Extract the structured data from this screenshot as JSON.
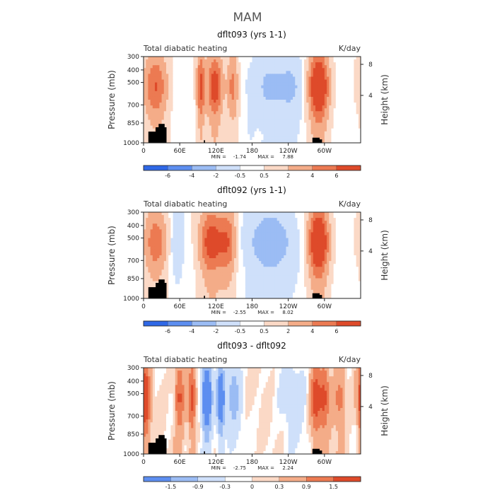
{
  "figure_title": "MAM",
  "chart_data": [
    {
      "type": "heatmap",
      "title": "dflt093 (yrs 1-1)",
      "subtitle_left": "Total diabatic heating",
      "subtitle_right": "K/day",
      "ylabel": "Pressure (mb)",
      "ylabel_right": "Height (km)",
      "x_ticks": [
        "0",
        "60E",
        "120E",
        "180",
        "120W",
        "60W"
      ],
      "y_ticks": [
        "300",
        "400",
        "500",
        "700",
        "850",
        "1000"
      ],
      "right_ticks": [
        "8",
        "4"
      ],
      "stats": {
        "min_label": "MIN =",
        "min": "-1.74",
        "max_label": "MAX =",
        "max": "7.88"
      },
      "colorbar_ticks": [
        "-6",
        "-4",
        "-2",
        "-0.5",
        "0.5",
        "2",
        "4",
        "6"
      ],
      "levels": [
        -6,
        -4,
        -2,
        -0.5,
        0.5,
        2,
        4,
        6
      ],
      "features": [
        {
          "lon": 20,
          "amp": 4.5,
          "width": 14
        },
        {
          "lon": 95,
          "amp": 5.0,
          "width": 5
        },
        {
          "lon": 118,
          "amp": 5.5,
          "width": 9
        },
        {
          "lon": 148,
          "amp": 3.5,
          "width": 7
        },
        {
          "lon": 210,
          "amp": -1.7,
          "width": 25
        },
        {
          "lon": 290,
          "amp": 7.5,
          "width": 12
        },
        {
          "lon": 250,
          "amp": -1.2,
          "width": 15
        }
      ]
    },
    {
      "type": "heatmap",
      "title": "dflt092 (yrs 1-1)",
      "subtitle_left": "Total diabatic heating",
      "subtitle_right": "K/day",
      "ylabel": "Pressure (mb)",
      "ylabel_right": "Height (km)",
      "x_ticks": [
        "0",
        "60E",
        "120E",
        "180",
        "120W",
        "60W"
      ],
      "y_ticks": [
        "300",
        "400",
        "500",
        "700",
        "850",
        "1000"
      ],
      "right_ticks": [
        "8",
        "4"
      ],
      "stats": {
        "min_label": "MIN =",
        "min": "-2.55",
        "max_label": "MAX =",
        "max": "8.02"
      },
      "colorbar_ticks": [
        "-6",
        "-4",
        "-2",
        "-0.5",
        "0.5",
        "2",
        "4",
        "6"
      ],
      "levels": [
        -6,
        -4,
        -2,
        -0.5,
        0.5,
        2,
        4,
        6
      ],
      "features": [
        {
          "lon": 20,
          "amp": 4.0,
          "width": 14
        },
        {
          "lon": 112,
          "amp": 5.5,
          "width": 14
        },
        {
          "lon": 140,
          "amp": 4.0,
          "width": 10
        },
        {
          "lon": 55,
          "amp": -1.5,
          "width": 8
        },
        {
          "lon": 210,
          "amp": -2.5,
          "width": 28
        },
        {
          "lon": 290,
          "amp": 7.5,
          "width": 12
        }
      ]
    },
    {
      "type": "heatmap",
      "title": "dflt093 - dflt092",
      "subtitle_left": "Total diabatic heating",
      "subtitle_right": "K/day",
      "ylabel": "Pressure (mb)",
      "ylabel_right": "Height (km)",
      "x_ticks": [
        "0",
        "60E",
        "120E",
        "180",
        "120W",
        "60W"
      ],
      "y_ticks": [
        "300",
        "400",
        "500",
        "700",
        "850",
        "1000"
      ],
      "right_ticks": [
        "8",
        "4"
      ],
      "stats": {
        "min_label": "MIN =",
        "min": "-2.75",
        "max_label": "MAX =",
        "max": "2.24"
      },
      "colorbar_ticks": [
        "-1.5",
        "-0.9",
        "-0.3",
        "0",
        "0.3",
        "0.9",
        "1.5"
      ],
      "levels": [
        -1.5,
        -0.9,
        -0.3,
        0,
        0.3,
        0.9,
        1.5
      ],
      "features": [
        {
          "lon": 3,
          "amp": 1.8,
          "width": 6
        },
        {
          "lon": 60,
          "amp": 1.2,
          "width": 6
        },
        {
          "lon": 80,
          "amp": 1.3,
          "width": 5
        },
        {
          "lon": 105,
          "amp": -2.2,
          "width": 6
        },
        {
          "lon": 128,
          "amp": -1.8,
          "width": 5
        },
        {
          "lon": 150,
          "amp": -1.0,
          "width": 8
        },
        {
          "lon": 250,
          "amp": -0.6,
          "width": 15
        },
        {
          "lon": 285,
          "amp": 1.5,
          "width": 6
        },
        {
          "lon": 300,
          "amp": 1.2,
          "width": 6
        },
        {
          "lon": 325,
          "amp": 0.8,
          "width": 8
        }
      ]
    }
  ],
  "colors": {
    "palette": [
      "#0a1a8c",
      "#1f3ec7",
      "#2f68e6",
      "#5d8ef0",
      "#9bbcf4",
      "#cfe0fa",
      "#ffffff",
      "#fbd9c6",
      "#f4ac88",
      "#ec7a52",
      "#de4a2a",
      "#bb2210",
      "#8a0d05"
    ],
    "terrain": "#000000",
    "axis": "#222222"
  }
}
